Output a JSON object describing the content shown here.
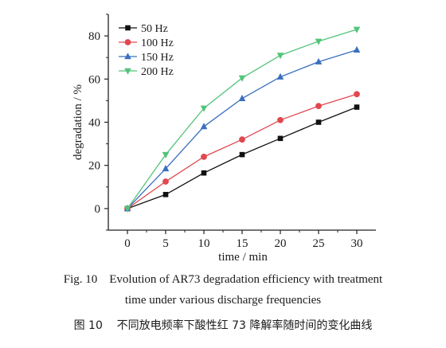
{
  "chart_data": {
    "type": "line",
    "xlabel": "time / min",
    "ylabel": "degradation / %",
    "xlim": [
      -2.5,
      32.5
    ],
    "ylim": [
      -10,
      90
    ],
    "xticks": [
      0,
      5,
      10,
      15,
      20,
      25,
      30
    ],
    "yticks": [
      0,
      20,
      40,
      60,
      80
    ],
    "grid": false,
    "legend_position": "top-left",
    "x": [
      0,
      5,
      10,
      15,
      20,
      25,
      30
    ],
    "series": [
      {
        "name": "50 Hz",
        "marker": "square",
        "color": "#111111",
        "values": [
          0,
          6.5,
          16.5,
          25,
          32.5,
          40,
          47
        ]
      },
      {
        "name": "100 Hz",
        "marker": "circle",
        "color": "#e0484f",
        "values": [
          0,
          12.5,
          24,
          32,
          41,
          47.5,
          53
        ]
      },
      {
        "name": "150 Hz",
        "marker": "triangle-up",
        "color": "#3b6fc0",
        "values": [
          0,
          18.5,
          38,
          51,
          61,
          68,
          73.5
        ]
      },
      {
        "name": "200 Hz",
        "marker": "triangle-down",
        "color": "#52c47a",
        "values": [
          0,
          25,
          46.5,
          60.5,
          71,
          77.5,
          83
        ]
      }
    ]
  },
  "caption": {
    "line1": "Fig. 10    Evolution of AR73 degradation efficiency with treatment",
    "line2": "time under various discharge frequencies",
    "line3": "图 10    不同放电频率下酸性红 73 降解率随时间的变化曲线"
  }
}
